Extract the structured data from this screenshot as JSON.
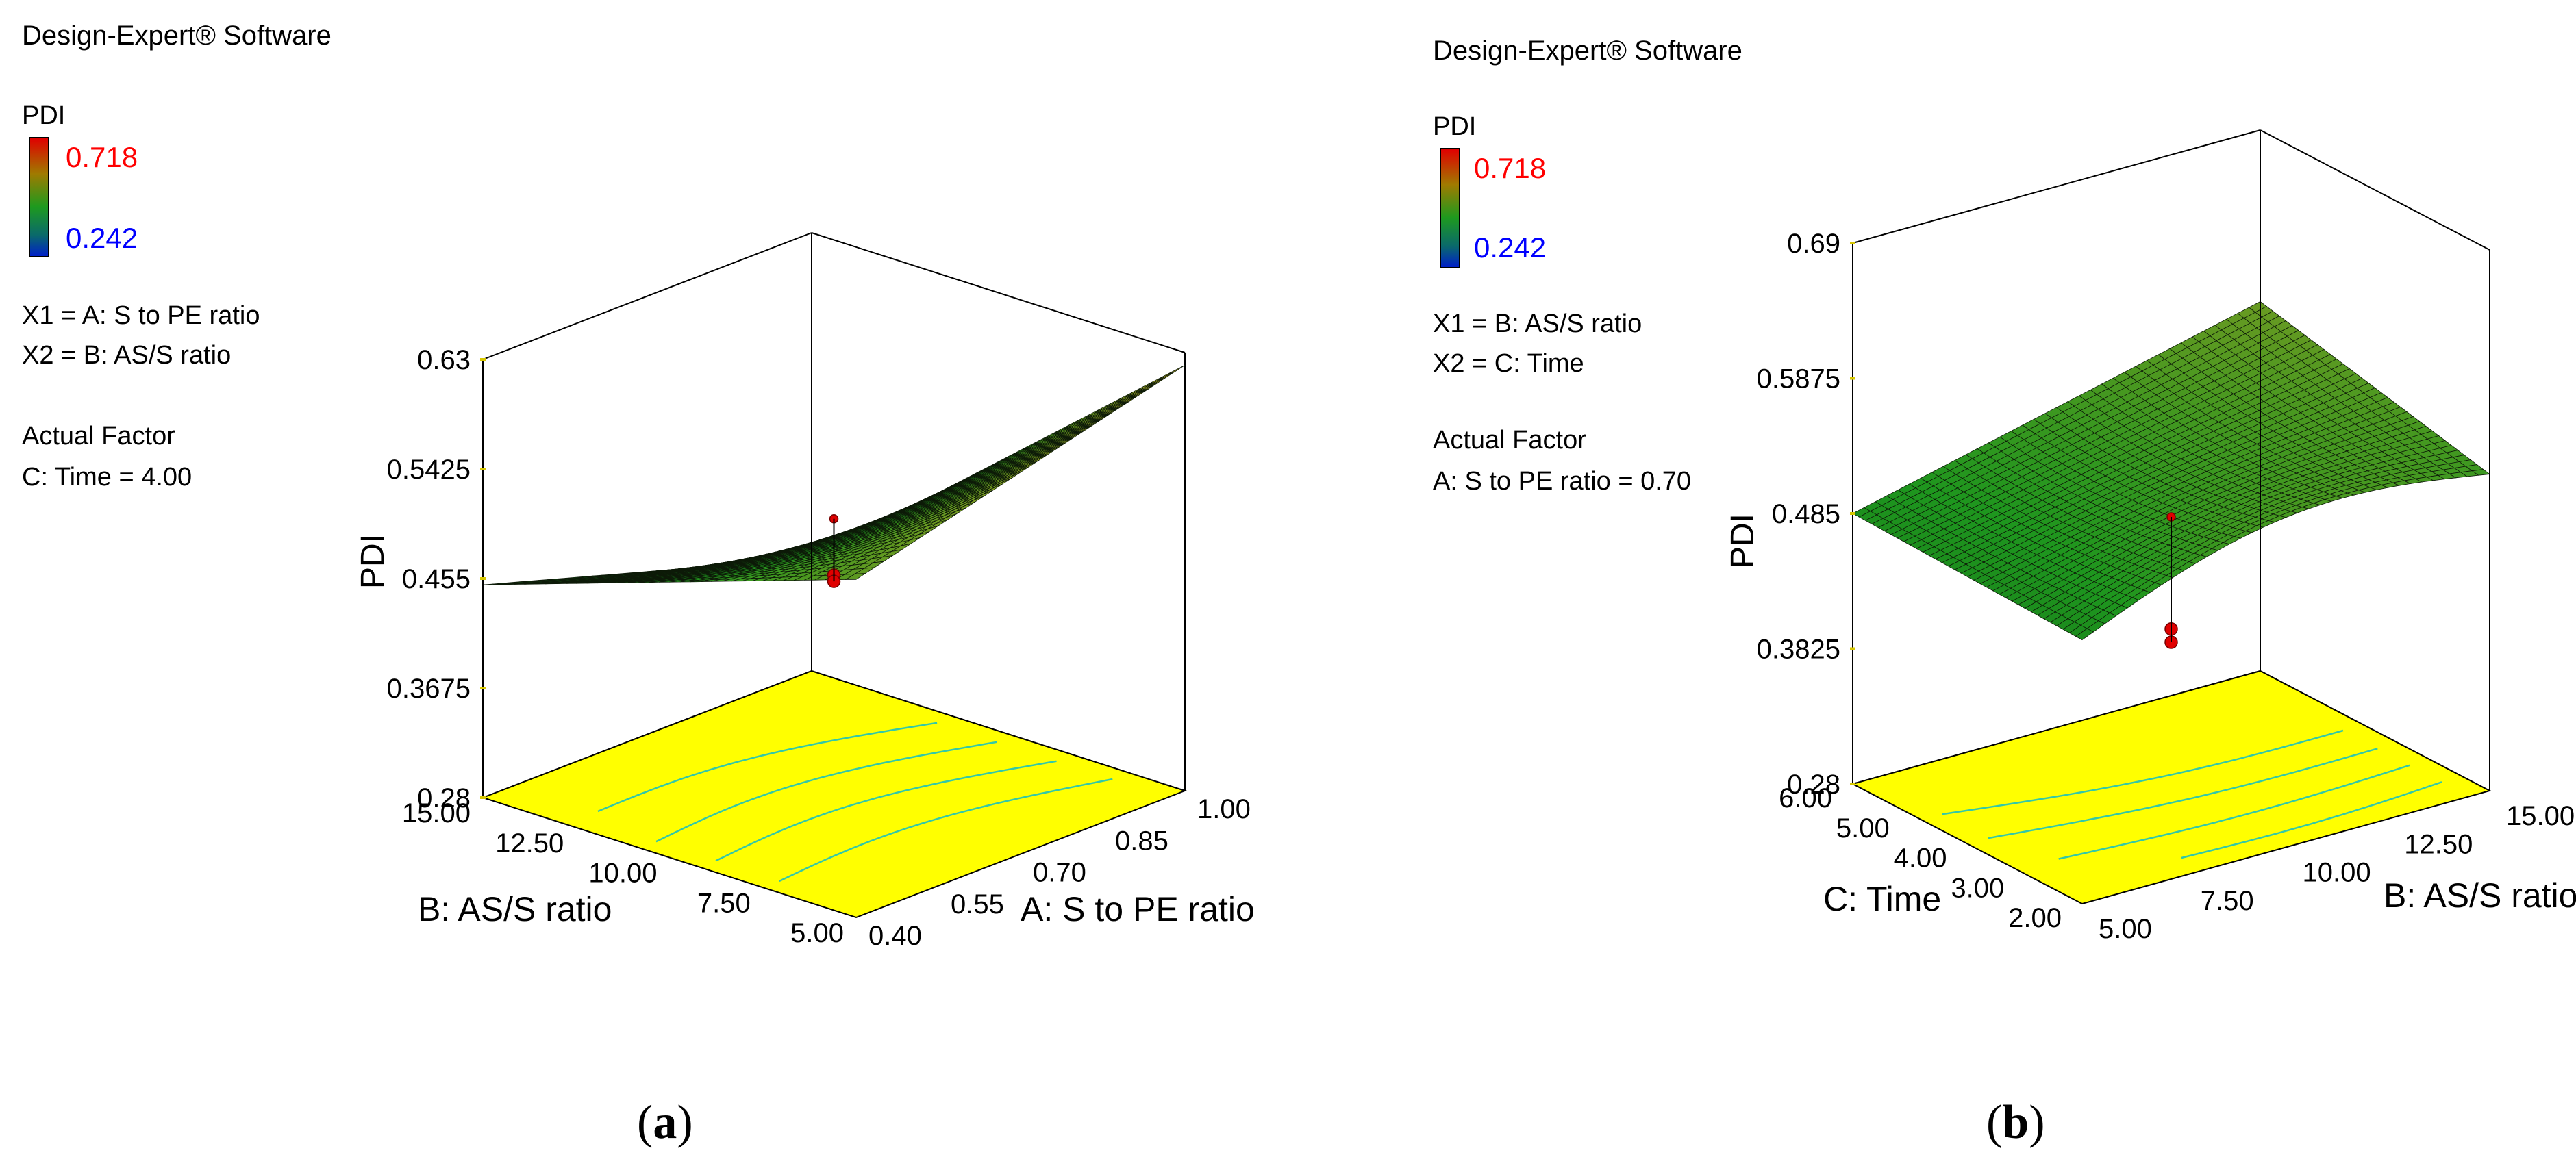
{
  "panels": [
    {
      "id": "a",
      "software": "Design-Expert® Software",
      "response": "PDI",
      "legend_high": "0.718",
      "legend_low": "0.242",
      "legend_high_color": "#ff0000",
      "legend_low_color": "#0000ff",
      "x1": "X1 = A: S to PE ratio",
      "x2": "X2 = B: AS/S ratio",
      "actual_factor_heading": "Actual Factor",
      "actual_factor": "C: Time = 4.00",
      "caption_open": "(",
      "caption_letter": "a",
      "caption_close": ")"
    },
    {
      "id": "b",
      "software": "Design-Expert® Software",
      "response": "PDI",
      "legend_high": "0.718",
      "legend_low": "0.242",
      "legend_high_color": "#ff0000",
      "legend_low_color": "#0000ff",
      "x1": "X1 = B: AS/S ratio",
      "x2": "X2 = C: Time",
      "actual_factor_heading": "Actual Factor",
      "actual_factor": "A: S to PE ratio = 0.70",
      "caption_open": "(",
      "caption_letter": "b",
      "caption_close": ")"
    }
  ],
  "chart_data": [
    {
      "type": "surface",
      "z_label": "PDI",
      "z_ticks": [
        "0.28",
        "0.3675",
        "0.455",
        "0.5425",
        "0.63"
      ],
      "zlim": [
        0.28,
        0.63
      ],
      "x_label": "A: S to PE ratio",
      "x_ticks": [
        "0.40",
        "0.55",
        "0.70",
        "0.85",
        "1.00"
      ],
      "xlim": [
        0.4,
        1.0
      ],
      "y_label": "B: AS/S ratio",
      "y_ticks": [
        "5.00",
        "7.50",
        "10.00",
        "12.50",
        "15.00"
      ],
      "ylim": [
        5.0,
        15.0
      ],
      "surface_corners": {
        "x_min_y_min": 0.55,
        "x_max_y_min": 0.62,
        "x_min_y_max": 0.45,
        "x_max_y_max": 0.37
      },
      "center_points_z": [
        0.5,
        0.455,
        0.45
      ]
    },
    {
      "type": "surface",
      "z_label": "PDI",
      "z_ticks": [
        "0.28",
        "0.3825",
        "0.485",
        "0.5875",
        "0.69"
      ],
      "zlim": [
        0.28,
        0.69
      ],
      "x_label": "B: AS/S ratio",
      "x_ticks": [
        "5.00",
        "7.50",
        "10.00",
        "12.50",
        "15.00"
      ],
      "xlim": [
        5.0,
        15.0
      ],
      "y_label": "C: Time",
      "y_ticks": [
        "2.00",
        "3.00",
        "4.00",
        "5.00",
        "6.00"
      ],
      "ylim": [
        2.0,
        6.0
      ],
      "surface_corners": {
        "x_min_y_min": 0.48,
        "x_max_y_min": 0.52,
        "x_min_y_max": 0.485,
        "x_max_y_max": 0.56
      },
      "center_points_z": [
        0.485,
        0.4,
        0.39
      ]
    }
  ]
}
